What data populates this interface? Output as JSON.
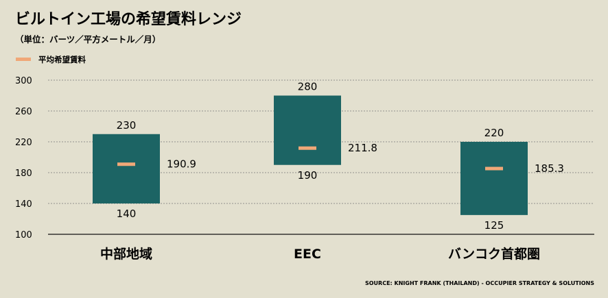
{
  "title": "ビルトイン工場の希望賃料レンジ",
  "subtitle": "（単位：バーツ／平方メートル／月）",
  "legend": {
    "label": "平均希望賃料",
    "color": "#f0a878"
  },
  "source": "SOURCE: KNIGHT FRANK (THAILAND) - OCCUPIER STRATEGY & SOLUTIONS",
  "colors": {
    "background": "#e3e0cf",
    "bar": "#1c6464",
    "marker": "#f0a878",
    "grid": "#777777"
  },
  "chart_data": {
    "type": "bar",
    "subtype": "floating-range",
    "categories": [
      "中部地域",
      "EEC",
      "バンコク首都圏"
    ],
    "series": [
      {
        "name": "",
        "low": [
          140,
          190,
          125
        ],
        "high": [
          230,
          280,
          220
        ]
      },
      {
        "name": "平均希望賃料",
        "values": [
          190.9,
          211.8,
          185.3
        ]
      }
    ],
    "low_labels": [
      "140",
      "190",
      "125"
    ],
    "high_labels": [
      "230",
      "280",
      "220"
    ],
    "avg_labels": [
      "190.9",
      "211.8",
      "185.3"
    ],
    "yticks": [
      100,
      140,
      180,
      220,
      260,
      300
    ],
    "ylim": [
      100,
      300
    ],
    "grid": true,
    "legend_position": "top-left"
  }
}
